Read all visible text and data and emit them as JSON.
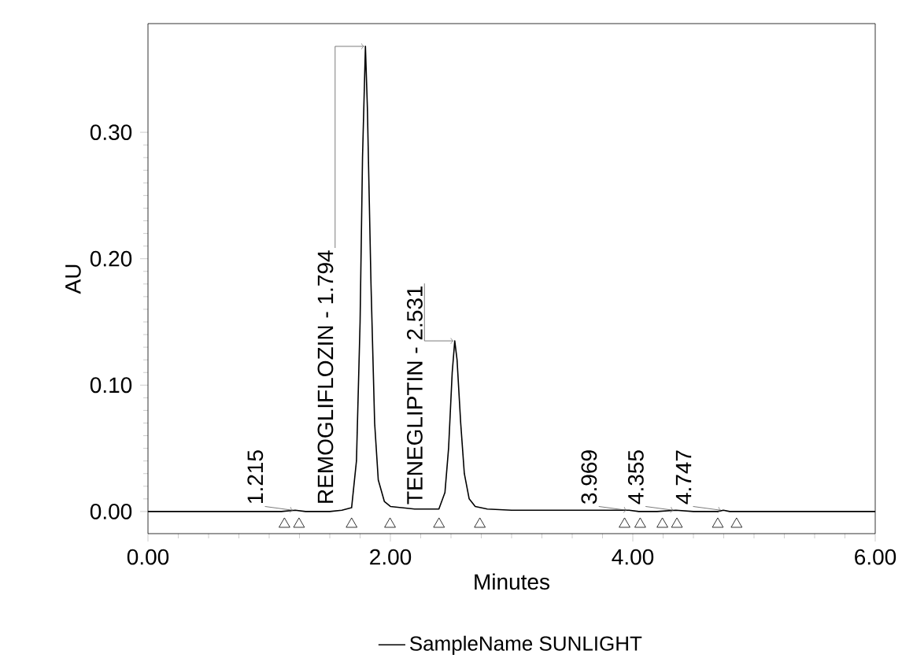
{
  "chart_data": {
    "type": "line",
    "xlabel": "Minutes",
    "ylabel": "AU",
    "xlim": [
      0,
      6
    ],
    "ylim": [
      -0.0175,
      0.386
    ],
    "xticks": [
      {
        "value": 0,
        "label": "0.00"
      },
      {
        "value": 2,
        "label": "2.00"
      },
      {
        "value": 4,
        "label": "4.00"
      },
      {
        "value": 6,
        "label": "6.00"
      }
    ],
    "yticks": [
      {
        "value": 0,
        "label": "0.00"
      },
      {
        "value": 0.1,
        "label": "0.10"
      },
      {
        "value": 0.2,
        "label": "0.20"
      },
      {
        "value": 0.3,
        "label": "0.30"
      }
    ],
    "grid": false,
    "legend": "bottom",
    "line_style": "solid",
    "marker": "none",
    "series": [
      {
        "name": "SampleName SUNLIGHT",
        "color": "#000000",
        "x": [
          0,
          0.5,
          1.0,
          1.1,
          1.215,
          1.3,
          1.5,
          1.6,
          1.68,
          1.72,
          1.75,
          1.77,
          1.794,
          1.81,
          1.84,
          1.87,
          1.9,
          1.95,
          2.0,
          2.2,
          2.4,
          2.45,
          2.48,
          2.51,
          2.531,
          2.55,
          2.58,
          2.61,
          2.65,
          2.7,
          2.8,
          3.0,
          3.5,
          3.9,
          3.969,
          4.05,
          4.2,
          4.355,
          4.5,
          4.7,
          4.747,
          4.8,
          5.0,
          5.5,
          6.0
        ],
        "values": [
          0,
          0,
          0,
          0,
          0.001,
          0,
          0,
          0.001,
          0.003,
          0.04,
          0.15,
          0.28,
          0.368,
          0.32,
          0.18,
          0.07,
          0.025,
          0.008,
          0.004,
          0.002,
          0.002,
          0.015,
          0.05,
          0.11,
          0.135,
          0.12,
          0.07,
          0.03,
          0.01,
          0.004,
          0.002,
          0.001,
          0.001,
          0.001,
          0.001,
          0,
          0,
          0.001,
          0,
          0,
          0.001,
          0,
          0,
          0,
          0
        ]
      },
      {
        "type": "scatter",
        "marker": "triangle",
        "color": "#000000",
        "x": [
          1.126,
          1.246,
          1.68,
          1.997,
          2.401,
          2.738,
          3.932,
          4.061,
          4.244,
          4.364,
          4.701,
          4.856
        ],
        "values": [
          -0.01,
          -0.01,
          -0.01,
          -0.01,
          -0.01,
          -0.01,
          -0.01,
          -0.01,
          -0.01,
          -0.01,
          -0.01,
          -0.01
        ]
      }
    ],
    "annotations": [
      {
        "text": "1.215",
        "x": 1.215,
        "y": 0.001
      },
      {
        "text": "REMOGLIFLOZIN - 1.794",
        "x": 1.794,
        "y": 0.368
      },
      {
        "text": "TENEGLIPTIN - 2.531",
        "x": 2.531,
        "y": 0.135
      },
      {
        "text": "3.969",
        "x": 3.969,
        "y": 0.001
      },
      {
        "text": "4.355",
        "x": 4.355,
        "y": 0.001
      },
      {
        "text": "4.747",
        "x": 4.747,
        "y": 0.001
      }
    ]
  }
}
